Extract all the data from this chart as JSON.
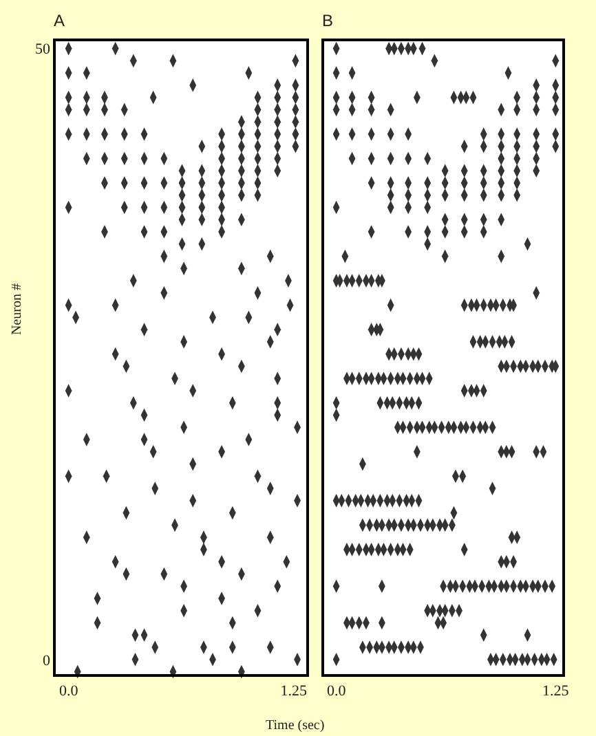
{
  "chart_data": [
    {
      "type": "scatter",
      "title": "A",
      "xlabel": "Time (sec)",
      "ylabel": "Neuron #",
      "marker": "diamond",
      "xlim": [
        -0.07,
        1.32
      ],
      "ylim": [
        -1.2,
        50.6
      ],
      "xticks": [
        {
          "value": 0,
          "label": "0.0"
        },
        1.25
      ],
      "yticks": [
        0,
        50
      ],
      "series": [
        {
          "color": "#333333",
          "x": [
            0.0,
            0.26
          ],
          "values": [
            50,
            50
          ]
        },
        {
          "color": "#333333",
          "x": [
            0.36,
            0.58,
            1.26
          ],
          "values": [
            49,
            49,
            49
          ]
        },
        {
          "color": "#333333",
          "x": [
            0.0,
            0.1,
            1.0
          ],
          "values": [
            48,
            48,
            48
          ]
        },
        {
          "color": "#333333",
          "x": [
            0.69,
            1.16,
            1.26
          ],
          "values": [
            47,
            47,
            47
          ]
        },
        {
          "color": "#333333",
          "x": [
            0.0,
            0.1,
            0.2,
            0.47,
            1.05,
            1.16,
            1.26
          ],
          "values": [
            46,
            46,
            46,
            46,
            46,
            46,
            46
          ]
        },
        {
          "color": "#333333",
          "x": [
            0.0,
            0.1,
            0.2,
            0.31,
            1.05,
            1.16,
            1.26
          ],
          "values": [
            45,
            45,
            45,
            45,
            45,
            45,
            45
          ]
        },
        {
          "color": "#333333",
          "x": [
            0.96,
            1.05,
            1.16,
            1.26
          ],
          "values": [
            44,
            44,
            44,
            44
          ]
        },
        {
          "color": "#333333",
          "x": [
            0.0,
            0.1,
            0.2,
            0.31,
            0.42,
            0.85,
            0.96,
            1.05,
            1.16,
            1.26
          ],
          "values": [
            43,
            43,
            43,
            43,
            43,
            43,
            43,
            43,
            43,
            43
          ]
        },
        {
          "color": "#333333",
          "x": [
            0.74,
            0.85,
            0.96,
            1.05,
            1.16,
            1.26
          ],
          "values": [
            42,
            42,
            42,
            42,
            42,
            42
          ]
        },
        {
          "color": "#333333",
          "x": [
            0.1,
            0.2,
            0.31,
            0.42,
            0.53,
            0.85,
            0.96,
            1.05,
            1.16
          ],
          "values": [
            41,
            41,
            41,
            41,
            41,
            41,
            41,
            41,
            41
          ]
        },
        {
          "color": "#333333",
          "x": [
            0.63,
            0.74,
            0.85,
            0.96,
            1.05,
            1.16
          ],
          "values": [
            40,
            40,
            40,
            40,
            40,
            40
          ]
        },
        {
          "color": "#333333",
          "x": [
            0.2,
            0.31,
            0.42,
            0.53,
            0.63,
            0.74,
            0.85,
            0.96,
            1.05
          ],
          "values": [
            39,
            39,
            39,
            39,
            39,
            39,
            39,
            39,
            39
          ]
        },
        {
          "color": "#333333",
          "x": [
            0.63,
            0.74,
            0.85,
            0.96,
            1.05
          ],
          "values": [
            38,
            38,
            38,
            38,
            38
          ]
        },
        {
          "color": "#333333",
          "x": [
            0.0,
            0.31,
            0.42,
            0.53,
            0.63,
            0.74,
            0.85
          ],
          "values": [
            37,
            37,
            37,
            37,
            37,
            37,
            37
          ]
        },
        {
          "color": "#333333",
          "x": [
            0.63,
            0.74,
            0.85,
            0.96
          ],
          "values": [
            36,
            36,
            36,
            36
          ]
        },
        {
          "color": "#333333",
          "x": [
            0.2,
            0.42,
            0.53,
            0.85,
            0.63,
            0.74
          ],
          "values": [
            35,
            35,
            35,
            35,
            34,
            34
          ]
        },
        {
          "color": "#333333",
          "x": [
            0.53,
            1.12
          ],
          "values": [
            33,
            33
          ]
        },
        {
          "color": "#333333",
          "x": [
            0.64,
            0.96
          ],
          "values": [
            32,
            32
          ]
        },
        {
          "color": "#333333",
          "x": [
            0.36,
            1.22
          ],
          "values": [
            31,
            31
          ]
        },
        {
          "color": "#333333",
          "x": [
            0.53,
            1.05
          ],
          "values": [
            30,
            30
          ]
        },
        {
          "color": "#333333",
          "x": [
            0.0,
            0.26,
            1.23
          ],
          "values": [
            29,
            29,
            29
          ]
        },
        {
          "color": "#333333",
          "x": [
            0.04,
            0.8,
            1.0
          ],
          "values": [
            28,
            28,
            28
          ]
        },
        {
          "color": "#333333",
          "x": [
            0.42,
            1.16,
            0.64,
            1.12
          ],
          "values": [
            27,
            27,
            26,
            26
          ]
        },
        {
          "color": "#333333",
          "x": [
            0.26,
            0.85
          ],
          "values": [
            25,
            25
          ]
        },
        {
          "color": "#333333",
          "x": [
            0.32,
            0.96
          ],
          "values": [
            24,
            24
          ]
        },
        {
          "color": "#333333",
          "x": [
            0.59,
            1.16
          ],
          "values": [
            23,
            23
          ]
        },
        {
          "color": "#333333",
          "x": [
            0.0,
            0.69
          ],
          "values": [
            22,
            22
          ]
        },
        {
          "color": "#333333",
          "x": [
            0.36,
            0.91,
            1.16
          ],
          "values": [
            21,
            21,
            21
          ]
        },
        {
          "color": "#333333",
          "x": [
            0.42,
            1.16
          ],
          "values": [
            20,
            20
          ]
        },
        {
          "color": "#333333",
          "x": [
            0.64,
            1.27
          ],
          "values": [
            19,
            19
          ]
        },
        {
          "color": "#333333",
          "x": [
            0.1,
            0.42,
            1.0
          ],
          "values": [
            18,
            18,
            18
          ]
        },
        {
          "color": "#333333",
          "x": [
            0.47,
            0.85,
            0.69
          ],
          "values": [
            17,
            17,
            16
          ]
        },
        {
          "color": "#333333",
          "x": [
            0.0,
            0.21,
            1.05
          ],
          "values": [
            15,
            15,
            15
          ]
        },
        {
          "color": "#333333",
          "x": [
            0.48,
            1.12
          ],
          "values": [
            14,
            14
          ]
        },
        {
          "color": "#333333",
          "x": [
            0.69,
            1.27
          ],
          "values": [
            13,
            13
          ]
        },
        {
          "color": "#333333",
          "x": [
            0.32,
            0.91,
            0.59
          ],
          "values": [
            12,
            12,
            11
          ]
        },
        {
          "color": "#333333",
          "x": [
            0.1,
            0.75,
            1.12,
            0.75
          ],
          "values": [
            10,
            10,
            10,
            9
          ]
        },
        {
          "color": "#333333",
          "x": [
            0.26,
            0.85,
            1.21
          ],
          "values": [
            8,
            8,
            8
          ]
        },
        {
          "color": "#333333",
          "x": [
            0.53,
            0.32,
            0.96
          ],
          "values": [
            7,
            7,
            7
          ]
        },
        {
          "color": "#333333",
          "x": [
            0.64,
            1.16
          ],
          "values": [
            6,
            6
          ]
        },
        {
          "color": "#333333",
          "x": [
            0.16,
            0.85
          ],
          "values": [
            5,
            5
          ]
        },
        {
          "color": "#333333",
          "x": [
            0.64,
            1.05,
            0.16,
            0.91
          ],
          "values": [
            4,
            4,
            3,
            3
          ]
        },
        {
          "color": "#333333",
          "x": [
            0.42,
            0.37,
            0.75,
            1.12
          ],
          "values": [
            2,
            2,
            1,
            1
          ]
        },
        {
          "color": "#333333",
          "x": [
            0.48,
            0.91,
            0.37,
            0.8,
            1.27
          ],
          "values": [
            1,
            1,
            0,
            0,
            0
          ]
        },
        {
          "color": "#333333",
          "x": [
            0.05,
            0.58,
            0.96
          ],
          "values": [
            -1,
            -1,
            -1
          ]
        }
      ]
    },
    {
      "type": "scatter",
      "title": "B",
      "marker": "diamond",
      "xlim": [
        -0.07,
        1.29
      ],
      "ylim": [
        -1.2,
        50.6
      ],
      "xticks": [
        {
          "value": 0,
          "label": "0.0"
        },
        1.25
      ],
      "tick_labels": "x",
      "series": [
        {
          "color": "#333333",
          "x": [
            0.0,
            0.3,
            0.33,
            0.37,
            0.41,
            0.44,
            0.49
          ],
          "values": [
            50,
            50,
            50,
            50,
            50,
            50,
            50
          ]
        },
        {
          "color": "#333333",
          "x": [
            0.56,
            1.25
          ],
          "values": [
            49,
            49
          ]
        },
        {
          "color": "#333333",
          "x": [
            0.0,
            0.09,
            0.98
          ],
          "values": [
            48,
            48,
            48
          ]
        },
        {
          "color": "#333333",
          "x": [
            1.14,
            1.25
          ],
          "values": [
            47,
            47
          ]
        },
        {
          "color": "#333333",
          "x": [
            0.0,
            0.09,
            0.2,
            0.46,
            0.67,
            0.71,
            0.74,
            0.78,
            1.03,
            1.14,
            1.25
          ],
          "values": [
            46,
            46,
            46,
            46,
            46,
            46,
            46,
            46,
            46,
            46,
            46
          ]
        },
        {
          "color": "#333333",
          "x": [
            0.0,
            0.09,
            0.2,
            0.31,
            0.94,
            1.03,
            1.14,
            1.25
          ],
          "values": [
            45,
            45,
            45,
            45,
            45,
            45,
            45,
            45
          ]
        },
        {
          "color": "#333333",
          "x": [
            0.0,
            0.09,
            0.2,
            0.31,
            0.41,
            0.84,
            0.94,
            1.03,
            1.14,
            1.25
          ],
          "values": [
            43,
            43,
            43,
            43,
            43,
            43,
            43,
            43,
            43,
            43
          ]
        },
        {
          "color": "#333333",
          "x": [
            0.73,
            0.84,
            0.94,
            1.03,
            1.14,
            1.25
          ],
          "values": [
            42,
            42,
            42,
            42,
            42,
            42
          ]
        },
        {
          "color": "#333333",
          "x": [
            0.09,
            0.2,
            0.31,
            0.41,
            0.52,
            0.94,
            1.03,
            1.14
          ],
          "values": [
            41,
            41,
            41,
            41,
            41,
            41,
            41,
            41
          ]
        },
        {
          "color": "#333333",
          "x": [
            0.62,
            0.73,
            0.84,
            0.94,
            1.03,
            1.14
          ],
          "values": [
            40,
            40,
            40,
            40,
            40,
            40
          ]
        },
        {
          "color": "#333333",
          "x": [
            0.2,
            0.31,
            0.41,
            0.52,
            0.62,
            0.73,
            0.84,
            0.94,
            1.03
          ],
          "values": [
            39,
            39,
            39,
            39,
            39,
            39,
            39,
            39,
            39
          ]
        },
        {
          "color": "#333333",
          "x": [
            0.31,
            0.41,
            0.52,
            0.62,
            0.73,
            0.84,
            0.94,
            1.03
          ],
          "values": [
            38,
            38,
            38,
            38,
            38,
            38,
            38,
            38
          ]
        },
        {
          "color": "#333333",
          "x": [
            0.0,
            0.31,
            0.41,
            0.52
          ],
          "values": [
            37,
            37,
            37,
            37
          ]
        },
        {
          "color": "#333333",
          "x": [
            0.62,
            0.73,
            0.84,
            0.94
          ],
          "values": [
            36,
            36,
            36,
            36
          ]
        },
        {
          "color": "#333333",
          "x": [
            0.2,
            0.41,
            0.52,
            0.84,
            0.62,
            0.73
          ],
          "values": [
            35,
            35,
            35,
            35,
            35,
            35
          ]
        },
        {
          "color": "#333333",
          "x": [
            0.52,
            1.09
          ],
          "values": [
            34,
            34
          ]
        },
        {
          "color": "#333333",
          "x": [
            0.05,
            0.62,
            0.94
          ],
          "values": [
            33,
            33,
            33
          ]
        },
        {
          "color": "#333333",
          "x": [
            0.0,
            0.02,
            0.06,
            0.09,
            0.13,
            0.17,
            0.2,
            0.24,
            0.26
          ],
          "values": [
            31,
            31,
            31,
            31,
            31,
            31,
            31,
            31,
            31
          ]
        },
        {
          "color": "#333333",
          "x": [
            1.14
          ],
          "values": [
            30
          ]
        },
        {
          "color": "#333333",
          "x": [
            0.31,
            0.73,
            0.77,
            0.8,
            0.84,
            0.88,
            0.91,
            0.95,
            0.99,
            1.01
          ],
          "values": [
            29,
            29,
            29,
            29,
            29,
            29,
            29,
            29,
            29,
            29
          ]
        },
        {
          "color": "#333333",
          "x": [
            0.2,
            0.23,
            0.25
          ],
          "values": [
            27,
            27,
            27
          ]
        },
        {
          "color": "#333333",
          "x": [
            0.78,
            0.82,
            0.85,
            0.89,
            0.93,
            0.96,
            1.0
          ],
          "values": [
            26,
            26,
            26,
            26,
            26,
            26,
            26
          ]
        },
        {
          "color": "#333333",
          "x": [
            0.3,
            0.33,
            0.37,
            0.41,
            0.44,
            0.47
          ],
          "values": [
            25,
            25,
            25,
            25,
            25,
            25
          ]
        },
        {
          "color": "#333333",
          "x": [
            0.94,
            0.97,
            1.01,
            1.05,
            1.08,
            1.12,
            1.15,
            1.19,
            1.23,
            1.25
          ],
          "values": [
            24,
            24,
            24,
            24,
            24,
            24,
            24,
            24,
            24,
            24
          ]
        },
        {
          "color": "#333333",
          "x": [
            0.06,
            0.09,
            0.13,
            0.17,
            0.2,
            0.24,
            0.27,
            0.31,
            0.35,
            0.38,
            0.42,
            0.46,
            0.49,
            0.53
          ],
          "values": [
            23,
            23,
            23,
            23,
            23,
            23,
            23,
            23,
            23,
            23,
            23,
            23,
            23,
            23
          ]
        },
        {
          "color": "#333333",
          "x": [
            0.73,
            0.77,
            0.8,
            0.84
          ],
          "values": [
            22,
            22,
            22,
            22
          ]
        },
        {
          "color": "#333333",
          "x": [
            0.0,
            0.25,
            0.29,
            0.32,
            0.36,
            0.4,
            0.43,
            0.47
          ],
          "values": [
            21,
            21,
            21,
            21,
            21,
            21,
            21,
            21
          ]
        },
        {
          "color": "#333333",
          "x": [
            0.0
          ],
          "values": [
            20
          ]
        },
        {
          "color": "#333333",
          "x": [
            0.35,
            0.38,
            0.42,
            0.46,
            0.49,
            0.53,
            0.56,
            0.6,
            0.64,
            0.67,
            0.71,
            0.74,
            0.78,
            0.82,
            0.85,
            0.89
          ],
          "values": [
            19,
            19,
            19,
            19,
            19,
            19,
            19,
            19,
            19,
            19,
            19,
            19,
            19,
            19,
            19,
            19
          ]
        },
        {
          "color": "#333333",
          "x": [
            0.94,
            0.97,
            1.0,
            1.14,
            1.18,
            0.46
          ],
          "values": [
            17,
            17,
            17,
            17,
            17,
            17
          ]
        },
        {
          "color": "#333333",
          "x": [
            0.15
          ],
          "values": [
            16
          ]
        },
        {
          "color": "#333333",
          "x": [
            0.68,
            0.72
          ],
          "values": [
            15,
            15
          ]
        },
        {
          "color": "#333333",
          "x": [
            0.89
          ],
          "values": [
            14
          ]
        },
        {
          "color": "#333333",
          "x": [
            0.0,
            0.03,
            0.07,
            0.11,
            0.14,
            0.18,
            0.21,
            0.25,
            0.29,
            0.32,
            0.36,
            0.4,
            0.43,
            0.47
          ],
          "values": [
            13,
            13,
            13,
            13,
            13,
            13,
            13,
            13,
            13,
            13,
            13,
            13,
            13,
            13
          ]
        },
        {
          "color": "#333333",
          "x": [
            0.67
          ],
          "values": [
            12
          ]
        },
        {
          "color": "#333333",
          "x": [
            0.15,
            0.19,
            0.23,
            0.26,
            0.3,
            0.33,
            0.37,
            0.41,
            0.44,
            0.48,
            0.52,
            0.55,
            0.59,
            0.62,
            0.66
          ],
          "values": [
            11,
            11,
            11,
            11,
            11,
            11,
            11,
            11,
            11,
            11,
            11,
            11,
            11,
            11,
            11
          ]
        },
        {
          "color": "#333333",
          "x": [
            1.0,
            1.03
          ],
          "values": [
            10,
            10
          ]
        },
        {
          "color": "#333333",
          "x": [
            0.06,
            0.09,
            0.13,
            0.17,
            0.2,
            0.24,
            0.27,
            0.31,
            0.35,
            0.38,
            0.42,
            0.73
          ],
          "values": [
            9,
            9,
            9,
            9,
            9,
            9,
            9,
            9,
            9,
            9,
            9,
            9
          ]
        },
        {
          "color": "#333333",
          "x": [
            0.94,
            0.97,
            1.01
          ],
          "values": [
            8,
            8,
            8
          ]
        },
        {
          "color": "#333333",
          "x": [
            0.0,
            0.26,
            0.61,
            0.65,
            0.68,
            0.72,
            0.76,
            0.79,
            0.83,
            0.87,
            0.9,
            0.94,
            0.97,
            1.01,
            1.05,
            1.08,
            1.12,
            1.15,
            1.19,
            1.23
          ],
          "values": [
            6,
            6,
            6,
            6,
            6,
            6,
            6,
            6,
            6,
            6,
            6,
            6,
            6,
            6,
            6,
            6,
            6,
            6,
            6,
            6
          ]
        },
        {
          "color": "#333333",
          "x": [
            0.52,
            0.55,
            0.59,
            0.62,
            0.66,
            0.7
          ],
          "values": [
            4,
            4,
            4,
            4,
            4,
            4
          ]
        },
        {
          "color": "#333333",
          "x": [
            0.06,
            0.09,
            0.13,
            0.17,
            0.26,
            0.58,
            0.61
          ],
          "values": [
            3,
            3,
            3,
            3,
            3,
            3,
            3
          ]
        },
        {
          "color": "#333333",
          "x": [
            0.84,
            1.09
          ],
          "values": [
            2,
            2
          ]
        },
        {
          "color": "#333333",
          "x": [
            0.15,
            0.19,
            0.23,
            0.26,
            0.3,
            0.33,
            0.37,
            0.41,
            0.44,
            0.48
          ],
          "values": [
            1,
            1,
            1,
            1,
            1,
            1,
            1,
            1,
            1,
            1
          ]
        },
        {
          "color": "#333333",
          "x": [
            0.0,
            0.88,
            0.91,
            0.95,
            0.99,
            1.02,
            1.06,
            1.09,
            1.13,
            1.17,
            1.2,
            1.24
          ],
          "values": [
            0,
            0,
            0,
            0,
            0,
            0,
            0,
            0,
            0,
            0,
            0,
            0
          ]
        }
      ]
    }
  ]
}
